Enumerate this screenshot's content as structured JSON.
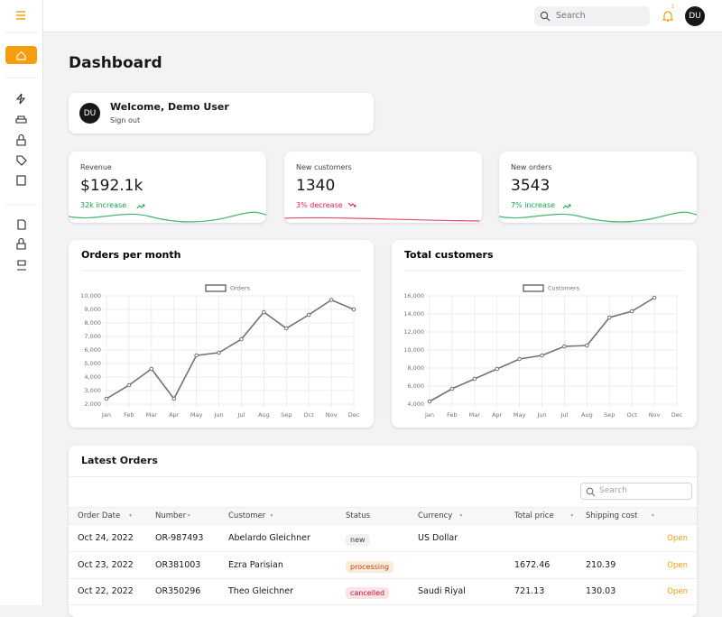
{
  "topbar": {
    "search_placeholder": "Search",
    "notification_count": "1",
    "avatar": "DU"
  },
  "page_title": "Dashboard",
  "welcome": {
    "avatar": "DU",
    "title": "Welcome, Demo User",
    "link": "Sign out"
  },
  "stats": [
    {
      "label": "Revenue",
      "value": "$192.1k",
      "change": "32k increase",
      "trend": "up",
      "color": "#16a34a"
    },
    {
      "label": "New customers",
      "value": "1340",
      "change": "3% decrease",
      "trend": "down",
      "color": "#e11d48"
    },
    {
      "label": "New orders",
      "value": "3543",
      "change": "7% increase",
      "trend": "up",
      "color": "#16a34a"
    }
  ],
  "chart_data": [
    {
      "type": "line",
      "title": "Orders per month",
      "categories": [
        "Jan",
        "Feb",
        "Mar",
        "Apr",
        "May",
        "Jun",
        "Jul",
        "Aug",
        "Sep",
        "Oct",
        "Nov",
        "Dec"
      ],
      "series": [
        {
          "name": "Orders",
          "color": "#71717a",
          "values": [
            2400,
            3400,
            4600,
            2400,
            5600,
            5800,
            6800,
            8800,
            7600,
            8600,
            9700,
            9000
          ]
        }
      ],
      "ylim": [
        2000,
        10000
      ],
      "yticks": [
        {
          "value": 2000,
          "label": "2,000"
        },
        {
          "value": 3000,
          "label": "3,000"
        },
        {
          "value": 4000,
          "label": "4,000"
        },
        {
          "value": 5000,
          "label": "5,000"
        },
        {
          "value": 6000,
          "label": "6,000"
        },
        {
          "value": 7000,
          "label": "7,000"
        },
        {
          "value": 8000,
          "label": "8,000"
        },
        {
          "value": 9000,
          "label": "9,000"
        },
        {
          "value": 10000,
          "label": "10,000"
        }
      ],
      "grid": true,
      "legend": "top"
    },
    {
      "type": "line",
      "title": "Total customers",
      "categories": [
        "Jan",
        "Feb",
        "Mar",
        "Apr",
        "May",
        "Jun",
        "Jul",
        "Aug",
        "Sep",
        "Oct",
        "Nov",
        "Dec"
      ],
      "series": [
        {
          "name": "Customers",
          "color": "#71717a",
          "values": [
            4300,
            5700,
            6800,
            7900,
            9000,
            9400,
            10400,
            10500,
            13600,
            14300,
            15800,
            null
          ]
        }
      ],
      "ylim": [
        4000,
        16000
      ],
      "yticks": [
        {
          "value": 4000,
          "label": "4,000"
        },
        {
          "value": 6000,
          "label": "6,000"
        },
        {
          "value": 8000,
          "label": "8,000"
        },
        {
          "value": 10000,
          "label": "10,000"
        },
        {
          "value": 12000,
          "label": "12,000"
        },
        {
          "value": 14000,
          "label": "14,000"
        },
        {
          "value": 16000,
          "label": "16,000"
        }
      ],
      "grid": true,
      "legend": "top"
    }
  ],
  "orders": {
    "title": "Latest Orders",
    "search_placeholder": "Search",
    "columns": [
      {
        "label": "Order Date",
        "sortable": true
      },
      {
        "label": "Number",
        "sortable": true
      },
      {
        "label": "Customer",
        "sortable": true
      },
      {
        "label": "Status",
        "sortable": false
      },
      {
        "label": "Currency",
        "sortable": true
      },
      {
        "label": "Total price",
        "sortable": true
      },
      {
        "label": "Shipping cost",
        "sortable": true
      }
    ],
    "rows": [
      {
        "date": "Oct 24, 2022",
        "number": "OR-987493",
        "customer": "Abelardo Gleichner",
        "status": "new",
        "status_bg": "#f1f1f3",
        "status_fg": "#3f3f46",
        "currency": "US Dollar",
        "action": "Open"
      },
      {
        "date": "Oct 23, 2022",
        "number": "OR381003",
        "customer": "Ezra Parisian",
        "status": "processing",
        "status_bg": "#fdecdc",
        "status_fg": "#c2410c",
        "total": "1672.46",
        "shipping": "210.39",
        "action": "Open"
      },
      {
        "date": "Oct 22, 2022",
        "number": "OR350296",
        "customer": "Theo Gleichner",
        "status": "cancelled",
        "status_bg": "#fde2e6",
        "status_fg": "#be123c",
        "currency": "Saudi Riyal",
        "total": "721.13",
        "shipping": "130.03",
        "action": "Open"
      }
    ]
  }
}
